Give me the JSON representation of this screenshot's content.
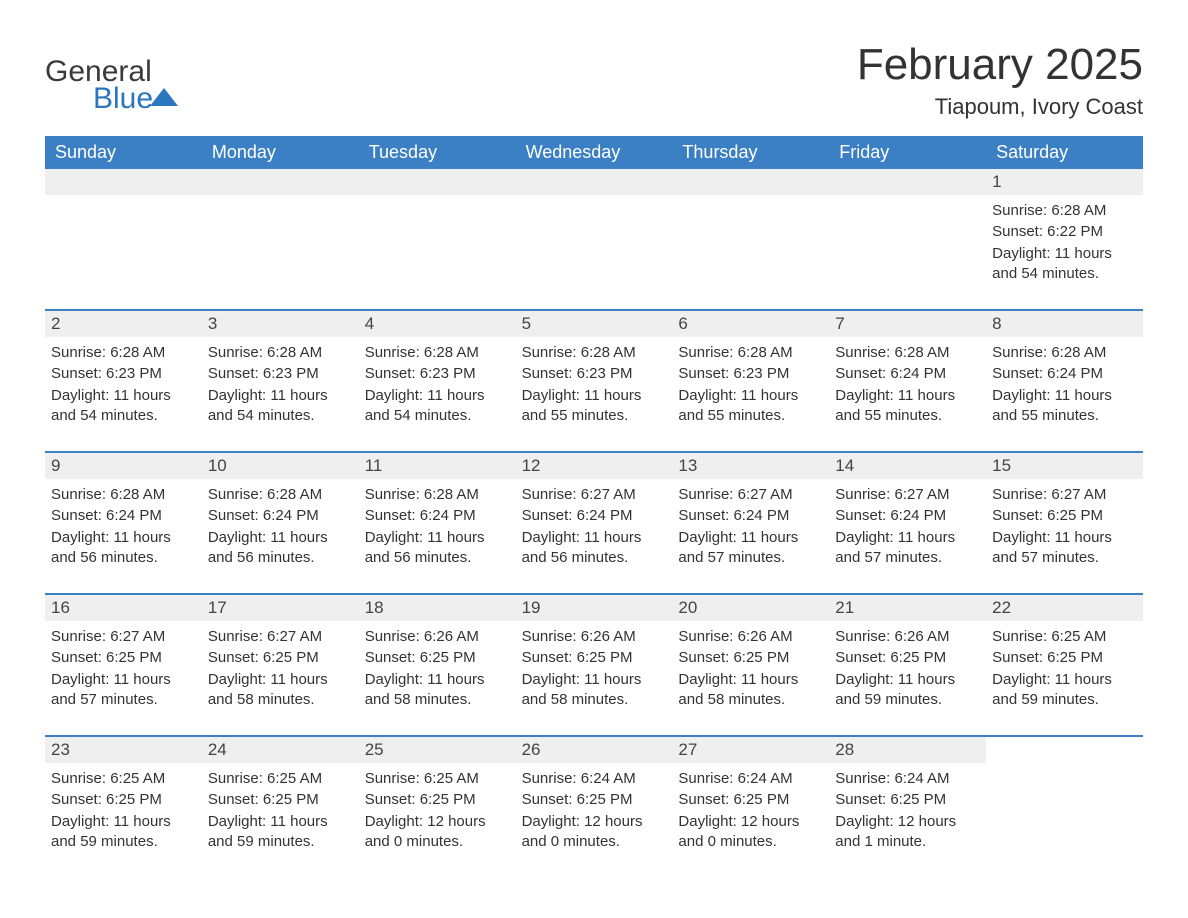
{
  "brand": {
    "word1": "General",
    "word2": "Blue"
  },
  "header": {
    "month_title": "February 2025",
    "location": "Tiapoum, Ivory Coast"
  },
  "weekdays": [
    "Sunday",
    "Monday",
    "Tuesday",
    "Wednesday",
    "Thursday",
    "Friday",
    "Saturday"
  ],
  "colors": {
    "header_bar": "#3b7fc4",
    "day_bar": "#efefef",
    "text": "#333333",
    "brand_blue": "#2b77bd"
  },
  "labels": {
    "sunrise": "Sunrise:",
    "sunset": "Sunset:",
    "daylight": "Daylight:"
  },
  "weeks": [
    [
      null,
      null,
      null,
      null,
      null,
      null,
      {
        "n": "1",
        "sunrise": "6:28 AM",
        "sunset": "6:22 PM",
        "daylight": "11 hours and 54 minutes."
      }
    ],
    [
      {
        "n": "2",
        "sunrise": "6:28 AM",
        "sunset": "6:23 PM",
        "daylight": "11 hours and 54 minutes."
      },
      {
        "n": "3",
        "sunrise": "6:28 AM",
        "sunset": "6:23 PM",
        "daylight": "11 hours and 54 minutes."
      },
      {
        "n": "4",
        "sunrise": "6:28 AM",
        "sunset": "6:23 PM",
        "daylight": "11 hours and 54 minutes."
      },
      {
        "n": "5",
        "sunrise": "6:28 AM",
        "sunset": "6:23 PM",
        "daylight": "11 hours and 55 minutes."
      },
      {
        "n": "6",
        "sunrise": "6:28 AM",
        "sunset": "6:23 PM",
        "daylight": "11 hours and 55 minutes."
      },
      {
        "n": "7",
        "sunrise": "6:28 AM",
        "sunset": "6:24 PM",
        "daylight": "11 hours and 55 minutes."
      },
      {
        "n": "8",
        "sunrise": "6:28 AM",
        "sunset": "6:24 PM",
        "daylight": "11 hours and 55 minutes."
      }
    ],
    [
      {
        "n": "9",
        "sunrise": "6:28 AM",
        "sunset": "6:24 PM",
        "daylight": "11 hours and 56 minutes."
      },
      {
        "n": "10",
        "sunrise": "6:28 AM",
        "sunset": "6:24 PM",
        "daylight": "11 hours and 56 minutes."
      },
      {
        "n": "11",
        "sunrise": "6:28 AM",
        "sunset": "6:24 PM",
        "daylight": "11 hours and 56 minutes."
      },
      {
        "n": "12",
        "sunrise": "6:27 AM",
        "sunset": "6:24 PM",
        "daylight": "11 hours and 56 minutes."
      },
      {
        "n": "13",
        "sunrise": "6:27 AM",
        "sunset": "6:24 PM",
        "daylight": "11 hours and 57 minutes."
      },
      {
        "n": "14",
        "sunrise": "6:27 AM",
        "sunset": "6:24 PM",
        "daylight": "11 hours and 57 minutes."
      },
      {
        "n": "15",
        "sunrise": "6:27 AM",
        "sunset": "6:25 PM",
        "daylight": "11 hours and 57 minutes."
      }
    ],
    [
      {
        "n": "16",
        "sunrise": "6:27 AM",
        "sunset": "6:25 PM",
        "daylight": "11 hours and 57 minutes."
      },
      {
        "n": "17",
        "sunrise": "6:27 AM",
        "sunset": "6:25 PM",
        "daylight": "11 hours and 58 minutes."
      },
      {
        "n": "18",
        "sunrise": "6:26 AM",
        "sunset": "6:25 PM",
        "daylight": "11 hours and 58 minutes."
      },
      {
        "n": "19",
        "sunrise": "6:26 AM",
        "sunset": "6:25 PM",
        "daylight": "11 hours and 58 minutes."
      },
      {
        "n": "20",
        "sunrise": "6:26 AM",
        "sunset": "6:25 PM",
        "daylight": "11 hours and 58 minutes."
      },
      {
        "n": "21",
        "sunrise": "6:26 AM",
        "sunset": "6:25 PM",
        "daylight": "11 hours and 59 minutes."
      },
      {
        "n": "22",
        "sunrise": "6:25 AM",
        "sunset": "6:25 PM",
        "daylight": "11 hours and 59 minutes."
      }
    ],
    [
      {
        "n": "23",
        "sunrise": "6:25 AM",
        "sunset": "6:25 PM",
        "daylight": "11 hours and 59 minutes."
      },
      {
        "n": "24",
        "sunrise": "6:25 AM",
        "sunset": "6:25 PM",
        "daylight": "11 hours and 59 minutes."
      },
      {
        "n": "25",
        "sunrise": "6:25 AM",
        "sunset": "6:25 PM",
        "daylight": "12 hours and 0 minutes."
      },
      {
        "n": "26",
        "sunrise": "6:24 AM",
        "sunset": "6:25 PM",
        "daylight": "12 hours and 0 minutes."
      },
      {
        "n": "27",
        "sunrise": "6:24 AM",
        "sunset": "6:25 PM",
        "daylight": "12 hours and 0 minutes."
      },
      {
        "n": "28",
        "sunrise": "6:24 AM",
        "sunset": "6:25 PM",
        "daylight": "12 hours and 1 minute."
      },
      null
    ]
  ]
}
